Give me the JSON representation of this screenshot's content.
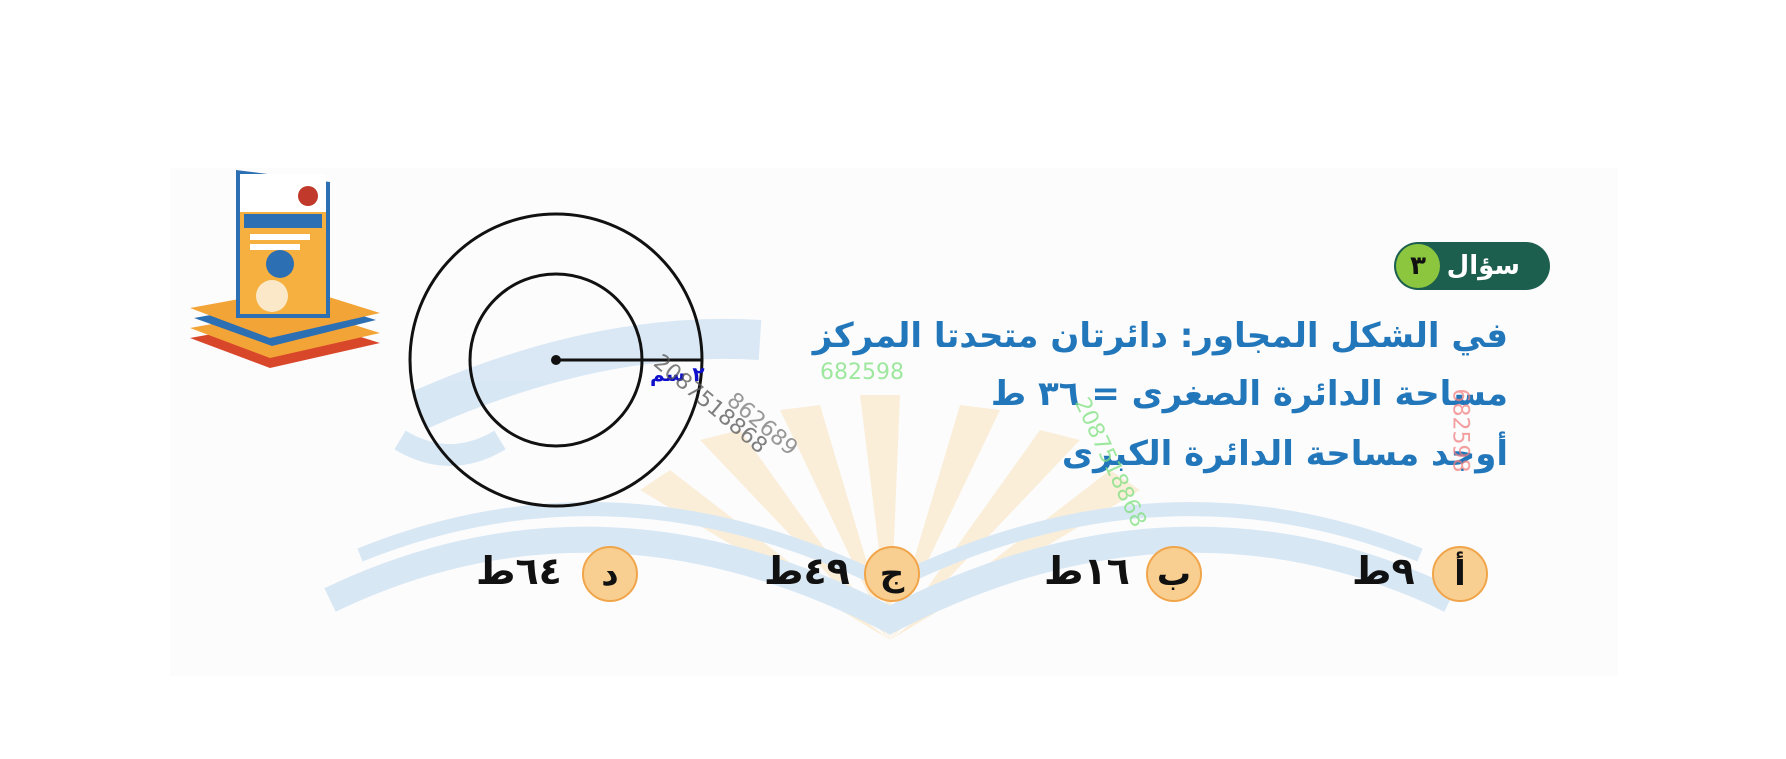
{
  "question": {
    "label": "سؤال",
    "number": "٣",
    "lines": [
      "في الشكل المجاور: دائرتان  متحدتا المركز",
      "مساحة الدائرة الصغرى = ٣٦ ط",
      "أوجد مساحة الدائرة الكبرى"
    ]
  },
  "figure": {
    "radius_label": "٢ سم"
  },
  "options": [
    {
      "letter": "أ",
      "value": "٩ط"
    },
    {
      "letter": "ب",
      "value": "١٦ط"
    },
    {
      "letter": "ج",
      "value": "٤٩ط"
    },
    {
      "letter": "د",
      "value": "٦٤ط"
    }
  ],
  "watermarks": [
    "682598",
    "2087518868",
    "862689",
    "2087518868",
    "682598"
  ],
  "colors": {
    "badge": "#1d5f4e",
    "badge_number": "#8cc63f",
    "question_text": "#2277bb",
    "option_circle": "#f9cf91",
    "option_border": "#f1a54a",
    "radius_label": "#1010cc"
  }
}
